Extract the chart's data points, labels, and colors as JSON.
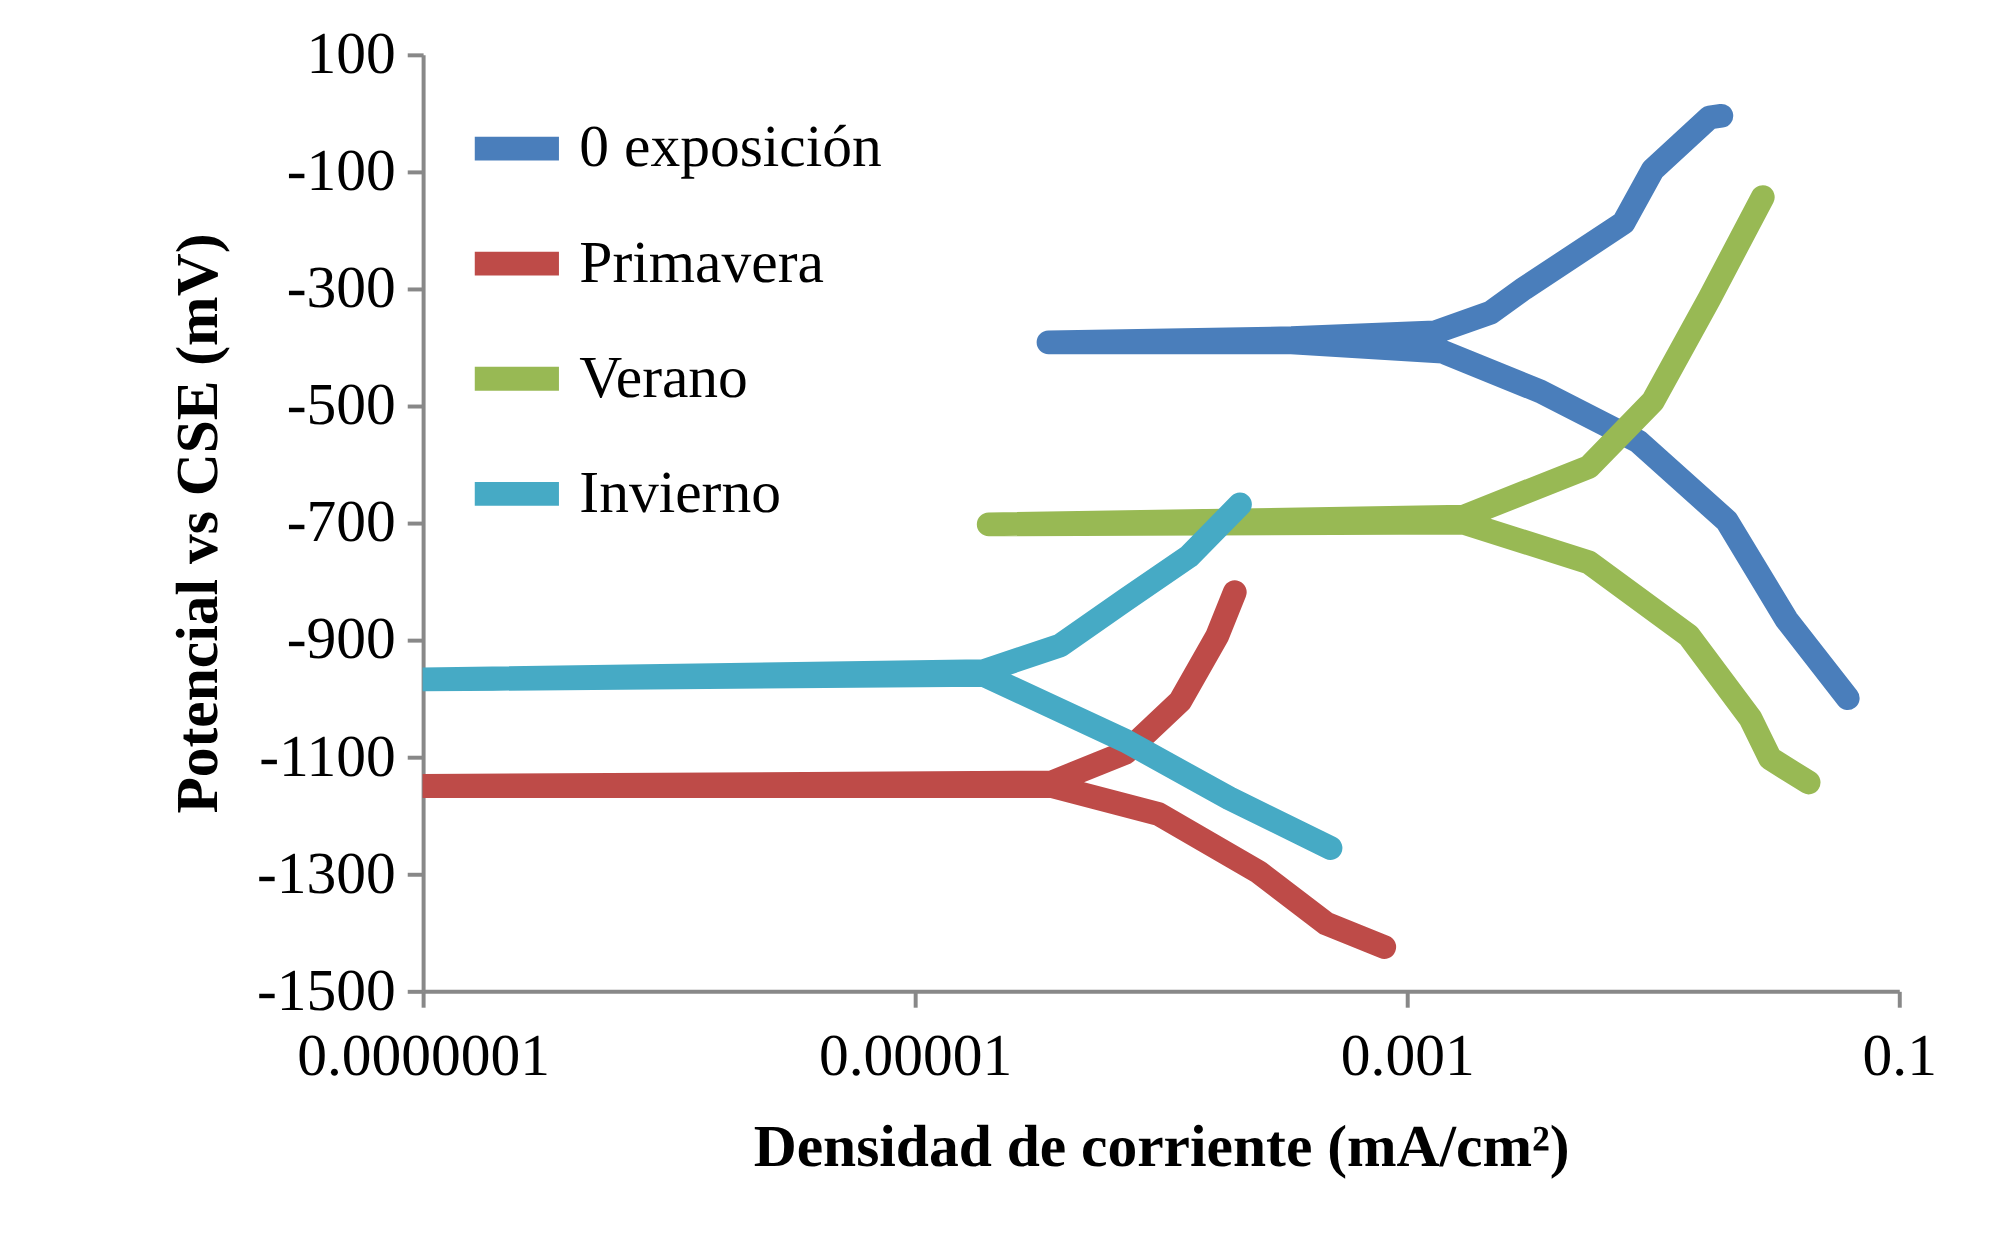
{
  "chart_data": {
    "type": "line",
    "xlabel": "Densidad de corriente (mA/cm²)",
    "ylabel": "Potencial vs CSE (mV)",
    "log": "x",
    "grid": false,
    "legend": "top left",
    "marker": "none",
    "line_style": "solid",
    "xlim": [
      1e-07,
      0.1
    ],
    "xticks": [
      {
        "value": 1e-07,
        "label": "0.0000001"
      },
      {
        "value": 1e-05,
        "label": "0.00001"
      },
      {
        "value": 0.001,
        "label": "0.001"
      },
      {
        "value": 0.1,
        "label": "0.1"
      }
    ],
    "ylim": [
      -1500,
      100
    ],
    "yticks": [
      100,
      -100,
      -300,
      -500,
      -700,
      -900,
      -1100,
      -1300,
      -1500
    ],
    "series": [
      {
        "name": "0 exposición",
        "color": "#4a7ebb",
        "x": [
          0.062,
          0.035,
          0.02,
          0.0087,
          0.0035,
          0.0014,
          0.00034,
          3.5e-05,
          0.00034,
          0.0013,
          0.0022,
          0.003,
          0.0076,
          0.01,
          0.017,
          0.019
        ],
        "values": [
          -1000,
          -866,
          -697,
          -561,
          -476,
          -408,
          -392,
          -392,
          -385,
          -375,
          -341,
          -300,
          -188,
          -97,
          -8,
          -5
        ]
      },
      {
        "name": "Primavera",
        "color": "#be4b48",
        "x": [
          0.00081,
          0.00047,
          0.00025,
          9.8e-05,
          3.6e-05,
          1e-07,
          3.6e-05,
          7.2e-05,
          0.00012,
          0.00017,
          0.0002
        ],
        "values": [
          -1425,
          -1385,
          -1297,
          -1198,
          -1150,
          -1150,
          -1144,
          -1093,
          -1005,
          -893,
          -819
        ]
      },
      {
        "name": "Verano",
        "color": "#98b954",
        "x": [
          0.043,
          0.03,
          0.025,
          0.014,
          0.0055,
          0.0017,
          2e-05,
          0.0017,
          0.0055,
          0.01,
          0.017,
          0.028
        ],
        "values": [
          -1144,
          -1103,
          -1035,
          -893,
          -768,
          -700,
          -703,
          -690,
          -605,
          -493,
          -317,
          -144
        ]
      },
      {
        "name": "Invierno",
        "color": "#46aac5",
        "x": [
          0.00049,
          0.00019,
          7.2e-05,
          1.9e-05,
          1e-07,
          1.9e-05,
          3.9e-05,
          7.2e-05,
          0.00013,
          0.00021
        ],
        "values": [
          -1256,
          -1171,
          -1073,
          -960,
          -968,
          -954,
          -910,
          -832,
          -758,
          -669
        ]
      }
    ]
  }
}
